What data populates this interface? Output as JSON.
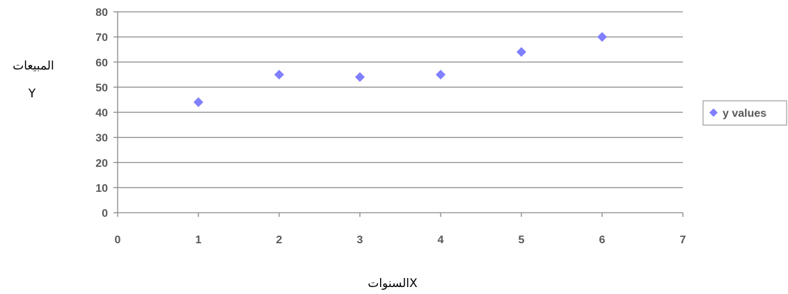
{
  "chart_data": {
    "type": "scatter",
    "title": "",
    "xlabel": "السنواتX",
    "ylabel_lines": [
      "المبيعات",
      "Y"
    ],
    "xlim": [
      0,
      7
    ],
    "ylim": [
      0,
      80
    ],
    "x_ticks": [
      0,
      1,
      2,
      3,
      4,
      5,
      6,
      7
    ],
    "y_ticks": [
      0,
      10,
      20,
      30,
      40,
      50,
      60,
      70,
      80
    ],
    "grid": true,
    "legend_position": "right",
    "series": [
      {
        "name": "y values",
        "marker": "diamond",
        "color": "#7F7FFF",
        "points": [
          {
            "x": 1,
            "y": 44
          },
          {
            "x": 2,
            "y": 55
          },
          {
            "x": 3,
            "y": 54
          },
          {
            "x": 4,
            "y": 55
          },
          {
            "x": 5,
            "y": 64
          },
          {
            "x": 6,
            "y": 70
          }
        ]
      }
    ]
  },
  "colors": {
    "gridline": "#868686",
    "axis": "#868686",
    "marker": "#7F7FFF",
    "legend_border": "#868686"
  }
}
